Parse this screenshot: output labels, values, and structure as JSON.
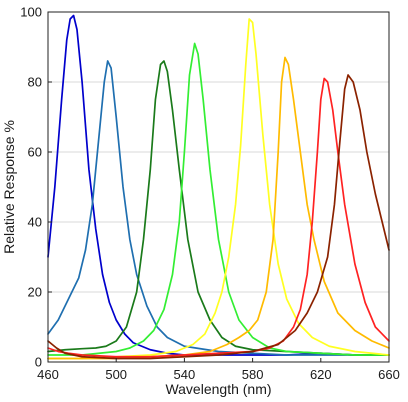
{
  "chart_data": {
    "type": "line",
    "xlabel": "Wavelength (nm)",
    "ylabel": "Relative Response %",
    "xlim": [
      460,
      660
    ],
    "ylim": [
      0,
      100
    ],
    "x_ticks": [
      460,
      500,
      540,
      580,
      620,
      660
    ],
    "y_ticks": [
      0,
      20,
      40,
      60,
      80,
      100
    ],
    "grid": "horizontal",
    "series": [
      {
        "color": "#0000cc",
        "points": [
          [
            460,
            30
          ],
          [
            464,
            50
          ],
          [
            468,
            75
          ],
          [
            471,
            92
          ],
          [
            473,
            98
          ],
          [
            475,
            99
          ],
          [
            477,
            95
          ],
          [
            480,
            80
          ],
          [
            484,
            55
          ],
          [
            488,
            38
          ],
          [
            492,
            25
          ],
          [
            496,
            17
          ],
          [
            500,
            12
          ],
          [
            505,
            8
          ],
          [
            510,
            5.5
          ],
          [
            520,
            3.5
          ],
          [
            530,
            2.5
          ],
          [
            540,
            2
          ],
          [
            560,
            2
          ],
          [
            580,
            2
          ],
          [
            600,
            2
          ],
          [
            620,
            2.5
          ],
          [
            640,
            2
          ],
          [
            660,
            2
          ]
        ]
      },
      {
        "color": "#1f6fb0",
        "points": [
          [
            460,
            8
          ],
          [
            466,
            12
          ],
          [
            472,
            18
          ],
          [
            478,
            24
          ],
          [
            482,
            32
          ],
          [
            486,
            45
          ],
          [
            490,
            65
          ],
          [
            493,
            80
          ],
          [
            495,
            86
          ],
          [
            497,
            84
          ],
          [
            500,
            70
          ],
          [
            504,
            50
          ],
          [
            508,
            35
          ],
          [
            512,
            25
          ],
          [
            518,
            16
          ],
          [
            524,
            10
          ],
          [
            530,
            7
          ],
          [
            540,
            4.5
          ],
          [
            560,
            3
          ],
          [
            580,
            2.5
          ],
          [
            600,
            2
          ],
          [
            620,
            2
          ],
          [
            640,
            2
          ],
          [
            660,
            2
          ]
        ]
      },
      {
        "color": "#1a7a1a",
        "points": [
          [
            460,
            3
          ],
          [
            470,
            3.5
          ],
          [
            480,
            3.8
          ],
          [
            488,
            4
          ],
          [
            494,
            4.5
          ],
          [
            500,
            6
          ],
          [
            506,
            10
          ],
          [
            512,
            20
          ],
          [
            516,
            35
          ],
          [
            520,
            55
          ],
          [
            523,
            75
          ],
          [
            526,
            85
          ],
          [
            528,
            86
          ],
          [
            530,
            83
          ],
          [
            533,
            72
          ],
          [
            537,
            55
          ],
          [
            542,
            35
          ],
          [
            548,
            20
          ],
          [
            555,
            12
          ],
          [
            562,
            7
          ],
          [
            570,
            4.5
          ],
          [
            580,
            3.5
          ],
          [
            600,
            3
          ],
          [
            620,
            2.5
          ],
          [
            640,
            2
          ],
          [
            660,
            2
          ]
        ]
      },
      {
        "color": "#33ee33",
        "points": [
          [
            460,
            2
          ],
          [
            470,
            2
          ],
          [
            480,
            2
          ],
          [
            490,
            2.5
          ],
          [
            500,
            3
          ],
          [
            508,
            4
          ],
          [
            516,
            6
          ],
          [
            522,
            9
          ],
          [
            528,
            15
          ],
          [
            533,
            25
          ],
          [
            537,
            40
          ],
          [
            540,
            60
          ],
          [
            543,
            82
          ],
          [
            546,
            91
          ],
          [
            548,
            88
          ],
          [
            551,
            75
          ],
          [
            555,
            55
          ],
          [
            560,
            35
          ],
          [
            566,
            20
          ],
          [
            572,
            12
          ],
          [
            580,
            7
          ],
          [
            590,
            4
          ],
          [
            600,
            3
          ],
          [
            620,
            2.5
          ],
          [
            640,
            2
          ],
          [
            660,
            2
          ]
        ]
      },
      {
        "color": "#ffff22",
        "points": [
          [
            460,
            1
          ],
          [
            480,
            1
          ],
          [
            500,
            1.5
          ],
          [
            520,
            2
          ],
          [
            535,
            3
          ],
          [
            545,
            5
          ],
          [
            552,
            8
          ],
          [
            558,
            14
          ],
          [
            562,
            20
          ],
          [
            566,
            30
          ],
          [
            570,
            45
          ],
          [
            573,
            62
          ],
          [
            576,
            85
          ],
          [
            578,
            98
          ],
          [
            580,
            97
          ],
          [
            582,
            88
          ],
          [
            586,
            65
          ],
          [
            590,
            45
          ],
          [
            595,
            28
          ],
          [
            600,
            18
          ],
          [
            607,
            11
          ],
          [
            615,
            7
          ],
          [
            625,
            4.5
          ],
          [
            640,
            3
          ],
          [
            660,
            2
          ]
        ]
      },
      {
        "color": "#ffbb00",
        "points": [
          [
            460,
            1
          ],
          [
            480,
            1
          ],
          [
            500,
            1
          ],
          [
            520,
            1.5
          ],
          [
            540,
            2
          ],
          [
            555,
            3
          ],
          [
            565,
            5
          ],
          [
            572,
            7
          ],
          [
            578,
            9
          ],
          [
            583,
            12
          ],
          [
            588,
            20
          ],
          [
            592,
            35
          ],
          [
            595,
            60
          ],
          [
            597,
            80
          ],
          [
            599,
            87
          ],
          [
            601,
            85
          ],
          [
            604,
            75
          ],
          [
            608,
            60
          ],
          [
            612,
            45
          ],
          [
            616,
            35
          ],
          [
            622,
            23
          ],
          [
            630,
            14
          ],
          [
            640,
            9
          ],
          [
            650,
            6
          ],
          [
            660,
            4
          ]
        ]
      },
      {
        "color": "#ff2222",
        "points": [
          [
            460,
            4
          ],
          [
            466,
            3
          ],
          [
            472,
            2.5
          ],
          [
            480,
            2
          ],
          [
            500,
            1.5
          ],
          [
            520,
            1.5
          ],
          [
            540,
            2
          ],
          [
            560,
            2.5
          ],
          [
            580,
            3
          ],
          [
            590,
            4
          ],
          [
            598,
            6
          ],
          [
            604,
            10
          ],
          [
            608,
            15
          ],
          [
            612,
            25
          ],
          [
            615,
            40
          ],
          [
            618,
            60
          ],
          [
            620,
            75
          ],
          [
            622,
            81
          ],
          [
            624,
            80
          ],
          [
            627,
            72
          ],
          [
            630,
            60
          ],
          [
            634,
            45
          ],
          [
            640,
            28
          ],
          [
            646,
            17
          ],
          [
            652,
            10
          ],
          [
            660,
            6
          ]
        ]
      },
      {
        "color": "#8b2200",
        "points": [
          [
            460,
            6
          ],
          [
            465,
            4
          ],
          [
            470,
            2.5
          ],
          [
            480,
            1.5
          ],
          [
            500,
            1
          ],
          [
            520,
            1
          ],
          [
            540,
            1.5
          ],
          [
            560,
            2
          ],
          [
            580,
            3
          ],
          [
            595,
            5
          ],
          [
            605,
            9
          ],
          [
            612,
            14
          ],
          [
            618,
            20
          ],
          [
            624,
            30
          ],
          [
            628,
            45
          ],
          [
            631,
            62
          ],
          [
            634,
            78
          ],
          [
            636,
            82
          ],
          [
            639,
            80
          ],
          [
            643,
            72
          ],
          [
            647,
            60
          ],
          [
            652,
            48
          ],
          [
            656,
            40
          ],
          [
            660,
            32
          ]
        ]
      }
    ]
  }
}
